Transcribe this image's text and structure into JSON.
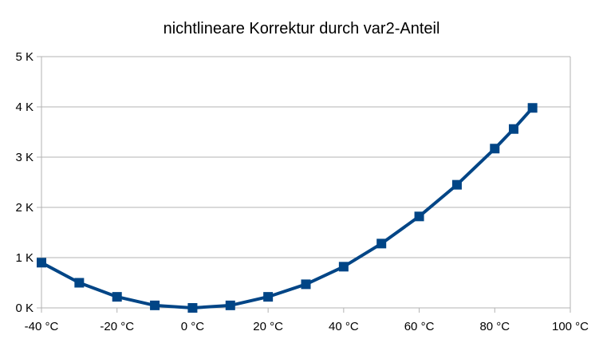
{
  "chart_data": {
    "type": "line",
    "title": "nichtlineare Korrektur durch var2-Anteil",
    "xlabel": "",
    "ylabel": "",
    "x_unit": "°C",
    "y_unit": "K",
    "xlim": [
      -40,
      100
    ],
    "ylim": [
      0,
      5
    ],
    "x_ticks": [
      -40,
      -20,
      0,
      20,
      40,
      60,
      80,
      100
    ],
    "y_ticks": [
      0,
      1,
      2,
      3,
      4,
      5
    ],
    "x_tick_labels": [
      "-40 °C",
      "-20 °C",
      "0 °C",
      "20 °C",
      "40 °C",
      "60 °C",
      "80 °C",
      "100 °C"
    ],
    "y_tick_labels": [
      "0 K",
      "1 K",
      "2 K",
      "3 K",
      "4 K",
      "5 K"
    ],
    "grid": "horizontal",
    "legend": "none",
    "series": [
      {
        "color": "#004586",
        "marker": "square",
        "x": [
          -40,
          -30,
          -20,
          -10,
          0,
          10,
          20,
          30,
          40,
          50,
          60,
          70,
          80,
          85,
          90
        ],
        "y": [
          0.9,
          0.5,
          0.22,
          0.05,
          0.0,
          0.05,
          0.22,
          0.47,
          0.82,
          1.28,
          1.82,
          2.45,
          3.17,
          3.56,
          3.98
        ]
      }
    ]
  }
}
